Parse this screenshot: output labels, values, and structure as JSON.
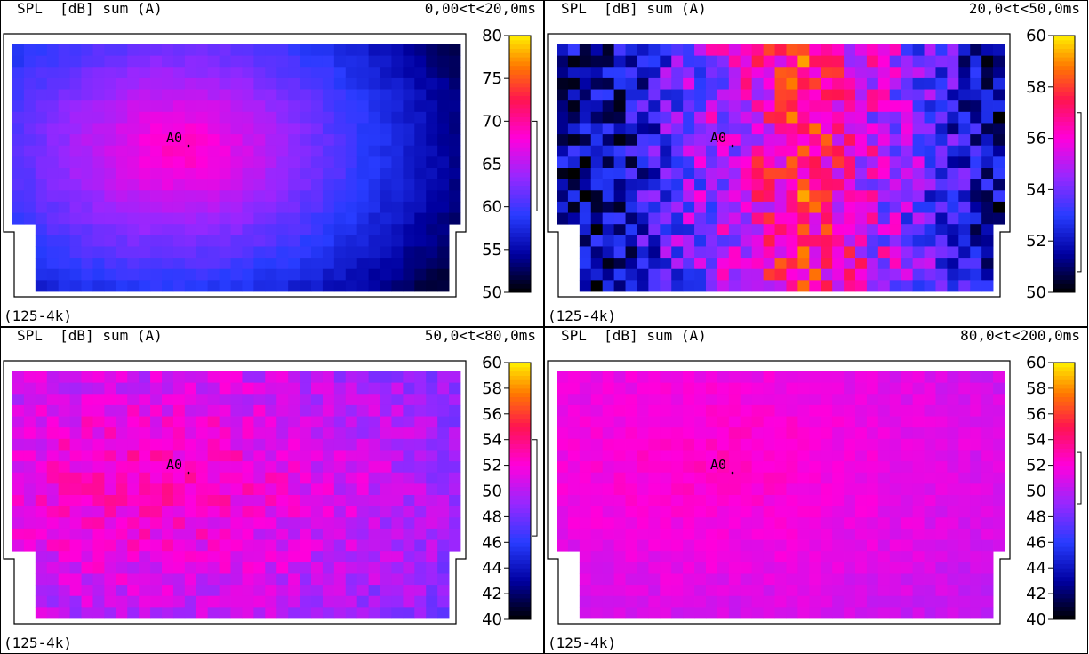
{
  "chart_data": [
    {
      "type": "heatmap",
      "id": "p1",
      "quantity": "SPL",
      "unit": "[dB]",
      "weighting": "sum (A)",
      "time_window": "0,00<t<20,0ms",
      "band": "(125-4k)",
      "source_label": "A0",
      "colorbar": {
        "min": 50,
        "max": 80,
        "ticks": [
          80,
          75,
          70,
          65,
          60,
          55,
          50
        ]
      },
      "pattern": "radial",
      "range": [
        53,
        70
      ],
      "noise": 0.6,
      "peak": {
        "col": 0.38,
        "row": 0.42
      },
      "legend_bracket": [
        70,
        59.5
      ]
    },
    {
      "type": "heatmap",
      "id": "p2",
      "quantity": "SPL",
      "unit": "[dB]",
      "weighting": "sum (A)",
      "time_window": "20,0<t<50,0ms",
      "band": "(125-4k)",
      "source_label": "A0",
      "colorbar": {
        "min": 50,
        "max": 60,
        "ticks": [
          60,
          58,
          56,
          54,
          52,
          50
        ]
      },
      "pattern": "band",
      "range": [
        51.5,
        57.5
      ],
      "noise": 1.8,
      "peak": {
        "col": 0.55,
        "row": 0.45
      },
      "legend_bracket": [
        57,
        50.8
      ]
    },
    {
      "type": "heatmap",
      "id": "p3",
      "quantity": "SPL",
      "unit": "[dB]",
      "weighting": "sum (A)",
      "time_window": "50,0<t<80,0ms",
      "band": "(125-4k)",
      "source_label": "A0",
      "colorbar": {
        "min": 40,
        "max": 60,
        "ticks": [
          60,
          58,
          56,
          54,
          52,
          50,
          48,
          46,
          44,
          42,
          40
        ]
      },
      "pattern": "uniform",
      "range": [
        48,
        53
      ],
      "noise": 1.4,
      "peak": {
        "col": 0.3,
        "row": 0.45
      },
      "legend_bracket": [
        54,
        46.5
      ]
    },
    {
      "type": "heatmap",
      "id": "p4",
      "quantity": "SPL",
      "unit": "[dB]",
      "weighting": "sum (A)",
      "time_window": "80,0<t<200,0ms",
      "band": "(125-4k)",
      "source_label": "A0",
      "colorbar": {
        "min": 40,
        "max": 60,
        "ticks": [
          60,
          58,
          56,
          54,
          52,
          50,
          48,
          46,
          44,
          42,
          40
        ]
      },
      "pattern": "uniform",
      "range": [
        50,
        52.5
      ],
      "noise": 0.6,
      "peak": {
        "col": 0.35,
        "row": 0.35
      },
      "legend_bracket": [
        53,
        49
      ]
    }
  ]
}
